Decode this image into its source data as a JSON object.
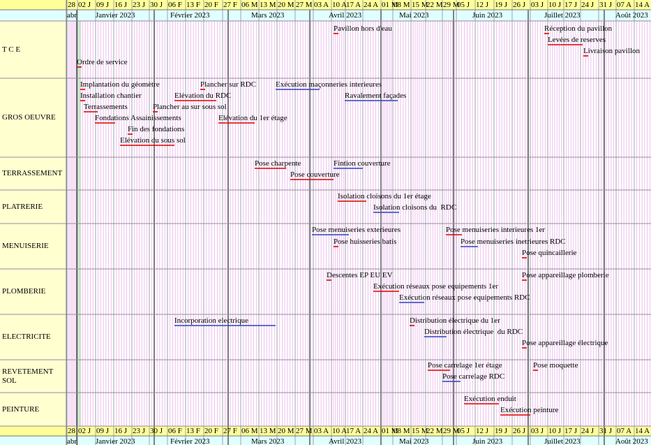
{
  "header": {
    "weeks": [
      "28",
      "02 J",
      "09 J",
      "16 J",
      "23 J",
      "30 J",
      "06 F",
      "13 F",
      "20 F",
      "27 F",
      "06 M",
      "13 M",
      "20 M",
      "27 M",
      "03 A",
      "10 A",
      "17 A",
      "24 A",
      "01 M",
      "08 M",
      "15 M",
      "22 M",
      "29 M",
      "05 J",
      "12 J",
      "19 J",
      "26 J",
      "03 J",
      "10 J",
      "17 J",
      "24 J",
      "31 J",
      "07 A",
      "14 A"
    ],
    "months": [
      "abr",
      "Janvier 2023",
      "Février 2023",
      "Mars 2023",
      "Avril 2023",
      "Mai 2023",
      "Juin 2023",
      "Juillet 2023",
      "Août 2023"
    ]
  },
  "lanes": [
    {
      "name": "T C E",
      "tasks": [
        "Pavillon hors d'eau",
        "Ordre de service",
        "Réception du pavillon",
        "Levées de reserves",
        "Livraison pavillon"
      ]
    },
    {
      "name": "GROS OEUVRE",
      "tasks": [
        "Implantation du géomètre",
        "Installation chantier",
        "Terrassements",
        "Fondations Assainissements",
        "Fin des fondations",
        "Elévation du sous sol",
        "Plancher sur RDC",
        "Elévation du RDC",
        "Plancher au sur sous sol",
        "Exécution maçonneries interieures",
        "Ravalement façades",
        "Elévation du 1er étage"
      ]
    },
    {
      "name": "TERRASSEMENT",
      "tasks": [
        "Pose charpente",
        "Fintion couverture",
        "Pose couverture"
      ]
    },
    {
      "name": "PLATRERIE",
      "tasks": [
        "Isolation cloisons du 1er étage",
        "Isolation cloisons du  RDC"
      ]
    },
    {
      "name": "MENUISERIE",
      "tasks": [
        "Pose menuiseries exterieures",
        "Pose huisseries batis",
        "Pose menuiseries interieures 1er",
        "Pose menuiseries inetrieures RDC",
        "Pose quincaillerie"
      ]
    },
    {
      "name": "PLOMBERIE",
      "tasks": [
        "Descentes EP EU EV",
        "Exécution réseaux pose equipements 1er",
        "Exécution réseaux pose equipements RDC",
        "Pose appareillage plomberie"
      ]
    },
    {
      "name": "ELECTRICITE",
      "tasks": [
        "Incorporation electrique",
        "Distribution électrique du 1er",
        "Distribution électrique  du RDC",
        "Pose appareillage électrique"
      ]
    },
    {
      "name": "REVETEMENT SOL",
      "tasks": [
        "Pose carrelage 1er étage",
        "Pose moquette",
        "Pose carrelage RDC"
      ]
    },
    {
      "name": "PEINTURE",
      "tasks": [
        "Exécution enduit",
        "Exécution peinture"
      ]
    }
  ]
}
